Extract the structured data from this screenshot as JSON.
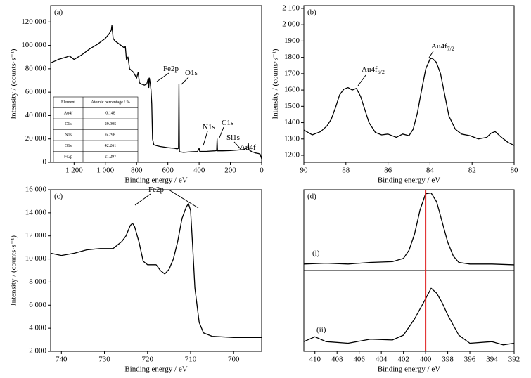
{
  "chart_data": [
    {
      "type": "line",
      "panel": "(a)",
      "xlabel": "Binding energy / eV",
      "ylabel": "Intensity / (counts·s⁻¹)",
      "xlim": [
        1350,
        0
      ],
      "ylim": [
        0,
        134000
      ],
      "xticks": [
        {
          "value": 1200,
          "label": "1 200"
        },
        {
          "value": 1000,
          "label": "1 000"
        },
        800,
        600,
        400,
        200,
        0
      ],
      "yticks": [
        0,
        {
          "value": 20000,
          "label": "20 000"
        },
        {
          "value": 40000,
          "label": "40 000"
        },
        {
          "value": 60000,
          "label": "60 000"
        },
        {
          "value": 80000,
          "label": "80 000"
        },
        {
          "value": 100000,
          "label": "100 000"
        },
        {
          "value": 120000,
          "label": "120 000"
        }
      ],
      "series": [
        {
          "color": "#000000",
          "x": [
            1350,
            1300,
            1250,
            1230,
            1200,
            1150,
            1100,
            1050,
            1000,
            975,
            962,
            958,
            950,
            940,
            900,
            880,
            872,
            865,
            855,
            845,
            820,
            800,
            790,
            782,
            770,
            750,
            735,
            725,
            722,
            718,
            713,
            708,
            703,
            698,
            690,
            680,
            650,
            600,
            560,
            540,
            532,
            529,
            526,
            500,
            450,
            410,
            400,
            396,
            350,
            300,
            288,
            285,
            282,
            250,
            200,
            150,
            110,
            100,
            90,
            85,
            82,
            75,
            60,
            40,
            20,
            10,
            5,
            0
          ],
          "values": [
            85000,
            88000,
            90000,
            91000,
            88000,
            92000,
            97000,
            101000,
            106000,
            110000,
            113000,
            117000,
            106000,
            104000,
            100000,
            98000,
            99000,
            88000,
            90000,
            80000,
            77000,
            72000,
            77000,
            68000,
            67000,
            66000,
            67000,
            72000,
            64000,
            72000,
            68000,
            62000,
            50000,
            20000,
            15000,
            14500,
            13500,
            12500,
            12000,
            11500,
            12000,
            67000,
            9000,
            8500,
            9000,
            9200,
            12000,
            9300,
            9400,
            9800,
            10000,
            20000,
            9800,
            9800,
            10000,
            10500,
            11000,
            12000,
            12500,
            16000,
            11000,
            10000,
            9000,
            8000,
            7500,
            7000,
            5000,
            3000
          ]
        }
      ],
      "annotations": [
        {
          "text": "Fe2p"
        },
        {
          "text": "O1s"
        },
        {
          "text": "N1s"
        },
        {
          "text": "C1s"
        },
        {
          "text": "Si1s"
        },
        {
          "text": "Au4f"
        }
      ],
      "table": {
        "header": [
          "Element",
          "Atomic percentage / %"
        ],
        "rows": [
          [
            "Au4f",
            0.148
          ],
          [
            "C1s",
            29.995
          ],
          [
            "N1s",
            6.298
          ],
          [
            "O1s",
            42.261
          ],
          [
            "Fe2p",
            21.297
          ]
        ]
      }
    },
    {
      "type": "line",
      "panel": "(b)",
      "xlabel": "Binding energy / eV",
      "ylabel": "Intensity / (counts·s⁻¹)",
      "xlim": [
        90,
        80
      ],
      "ylim": [
        1157,
        2117
      ],
      "xticks": [
        90,
        88,
        86,
        84,
        82,
        80
      ],
      "yticks": [
        1200,
        1300,
        1400,
        1500,
        1600,
        1700,
        1800,
        1900,
        {
          "value": 2000,
          "label": "2 000"
        },
        {
          "value": 2100,
          "label": "2 100"
        }
      ],
      "series": [
        {
          "color": "#000000",
          "x": [
            90,
            89.6,
            89.2,
            88.9,
            88.7,
            88.5,
            88.3,
            88.1,
            87.9,
            87.7,
            87.5,
            87.3,
            87.1,
            86.9,
            86.6,
            86.3,
            86,
            85.6,
            85.3,
            85,
            84.8,
            84.6,
            84.4,
            84.2,
            84,
            83.9,
            83.7,
            83.5,
            83.3,
            83.1,
            82.8,
            82.5,
            82.1,
            81.7,
            81.3,
            81.1,
            80.9,
            80.6,
            80.3,
            80
          ],
          "values": [
            1355,
            1325,
            1345,
            1380,
            1420,
            1490,
            1570,
            1605,
            1615,
            1600,
            1610,
            1560,
            1480,
            1400,
            1340,
            1325,
            1330,
            1310,
            1330,
            1320,
            1360,
            1460,
            1600,
            1730,
            1790,
            1795,
            1770,
            1700,
            1570,
            1440,
            1360,
            1330,
            1320,
            1300,
            1310,
            1335,
            1345,
            1310,
            1280,
            1260
          ]
        }
      ],
      "annotations": [
        {
          "text": "Au4f",
          "sub": "5/2"
        },
        {
          "text": "Au4f",
          "sub": "7/2"
        }
      ]
    },
    {
      "type": "line",
      "panel": "(c)",
      "xlabel": "Binding energy / eV",
      "ylabel": "Intensity / (counts·s⁻¹)",
      "xlim": [
        742.5,
        693.5
      ],
      "ylim": [
        2000,
        16000
      ],
      "xticks": [
        740,
        730,
        720,
        710,
        700
      ],
      "yticks": [
        {
          "value": 2000,
          "label": "2 000"
        },
        {
          "value": 4000,
          "label": "4 000"
        },
        {
          "value": 6000,
          "label": "6 000"
        },
        {
          "value": 8000,
          "label": "8 000"
        },
        {
          "value": 10000,
          "label": "10 000"
        },
        {
          "value": 12000,
          "label": "12 000"
        },
        {
          "value": 14000,
          "label": "14 000"
        },
        {
          "value": 16000,
          "label": "16 000"
        }
      ],
      "series": [
        {
          "color": "#000000",
          "x": [
            742.5,
            740,
            737,
            734,
            731,
            728,
            726,
            725,
            724,
            723.5,
            723,
            722,
            721,
            720,
            718,
            717,
            716,
            715,
            714,
            713,
            712,
            711,
            710.5,
            710,
            709.5,
            709,
            708,
            707,
            705,
            700,
            693.5
          ],
          "values": [
            10500,
            10300,
            10500,
            10800,
            10900,
            10900,
            11500,
            12000,
            12900,
            13100,
            12800,
            11500,
            9800,
            9500,
            9500,
            9000,
            8700,
            9100,
            10000,
            11500,
            13500,
            14500,
            14800,
            14200,
            11000,
            7500,
            4500,
            3600,
            3300,
            3200,
            3200
          ]
        }
      ],
      "annotations": [
        {
          "text": "Fe2p"
        }
      ]
    },
    {
      "type": "line",
      "panel": "(d)",
      "xlabel": "Binding energy / eV",
      "xlim": [
        411,
        392
      ],
      "xticks": [
        410,
        408,
        406,
        404,
        402,
        400,
        398,
        396,
        394,
        392
      ],
      "vline": {
        "x": 400,
        "color": "#e02020"
      },
      "series": [
        {
          "name": "(i)",
          "color": "#000000",
          "ylim": [
            0,
            100
          ],
          "x": [
            411,
            409,
            407,
            405,
            403,
            402,
            401.5,
            401,
            400.5,
            400,
            399.5,
            399,
            398.5,
            398,
            397.5,
            397,
            396,
            394,
            392
          ],
          "values": [
            8,
            9,
            8,
            10,
            11,
            15,
            25,
            45,
            75,
            95,
            96,
            85,
            60,
            35,
            18,
            10,
            8,
            8,
            7
          ]
        },
        {
          "name": "(ii)",
          "color": "#000000",
          "ylim": [
            0,
            100
          ],
          "x": [
            411,
            410,
            409,
            407,
            405,
            403,
            402,
            401,
            400,
            399.5,
            399,
            398.5,
            398,
            397,
            396,
            394,
            393,
            392
          ],
          "values": [
            12,
            18,
            12,
            10,
            15,
            14,
            20,
            40,
            65,
            78,
            72,
            60,
            45,
            20,
            10,
            12,
            8,
            10
          ]
        }
      ],
      "annotations": []
    }
  ]
}
